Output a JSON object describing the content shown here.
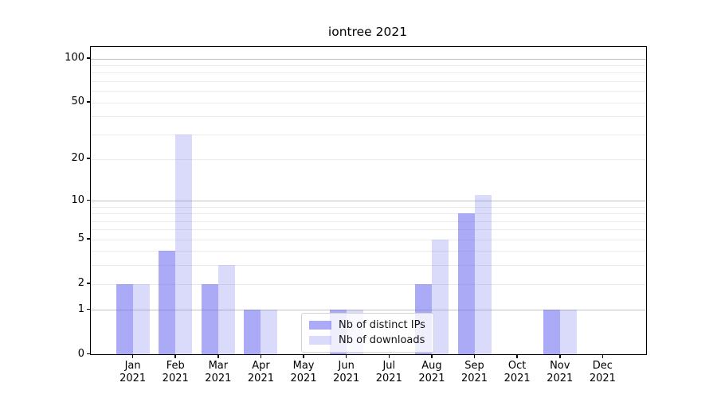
{
  "chart_data": {
    "type": "bar",
    "title": "iontree 2021",
    "categories": [
      "Jan 2021",
      "Feb 2021",
      "Mar 2021",
      "Apr 2021",
      "May 2021",
      "Jun 2021",
      "Jul 2021",
      "Aug 2021",
      "Sep 2021",
      "Oct 2021",
      "Nov 2021",
      "Dec 2021"
    ],
    "series": [
      {
        "name": "Nb of distinct IPs",
        "color": "rgba(100,100,238,0.55)",
        "values": [
          2,
          4,
          2,
          1,
          0,
          1,
          0,
          2,
          8,
          0,
          1,
          0
        ]
      },
      {
        "name": "Nb of downloads",
        "color": "rgba(100,100,238,0.24)",
        "values": [
          2,
          30,
          3,
          1,
          0,
          1,
          0,
          5,
          11,
          0,
          1,
          0
        ]
      }
    ],
    "yscale": "log1p",
    "ylim": [
      0,
      120
    ],
    "yticks": [
      0,
      1,
      2,
      5,
      10,
      20,
      50,
      100
    ],
    "major_gridlines": [
      1,
      10,
      100
    ],
    "minor_gridlines": [
      2,
      3,
      4,
      5,
      6,
      7,
      8,
      9,
      20,
      30,
      40,
      50,
      60,
      70,
      80,
      90
    ],
    "legend": {
      "position": "lower center"
    },
    "colors": {
      "bar_distinct_ips": "rgba(100,100,238,0.55)",
      "bar_downloads": "rgba(100,100,238,0.24)",
      "major_grid": "#c2c2c2",
      "minor_grid": "#ebebeb",
      "frame": "#000000"
    }
  }
}
